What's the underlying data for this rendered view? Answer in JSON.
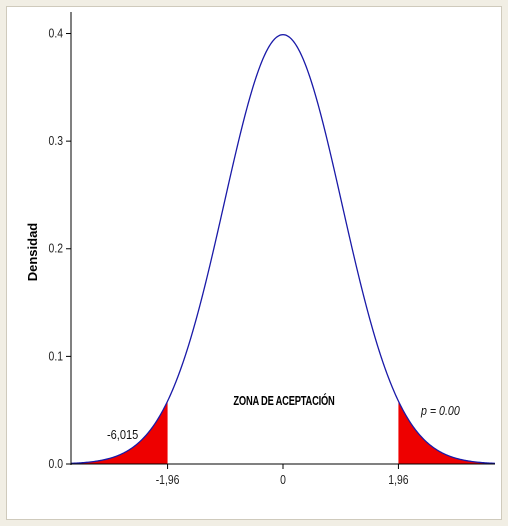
{
  "chart_data": {
    "type": "area",
    "title": "",
    "xlabel": "",
    "ylabel": "Densidad",
    "distribution": "standard normal",
    "xlim": [
      -3.6,
      3.6
    ],
    "ylim": [
      0,
      0.42
    ],
    "x_ticks": [
      {
        "value": -1.96,
        "label": "-1,96"
      },
      {
        "value": 0,
        "label": "0"
      },
      {
        "value": 1.96,
        "label": "1,96"
      }
    ],
    "y_ticks": [
      {
        "value": 0.0,
        "label": "0.0"
      },
      {
        "value": 0.1,
        "label": "0.1"
      },
      {
        "value": 0.2,
        "label": "0.2"
      },
      {
        "value": 0.3,
        "label": "0.3"
      },
      {
        "value": 0.4,
        "label": "0.4"
      }
    ],
    "critical_values": [
      -1.96,
      1.96
    ],
    "curve_color": "#1a1aa8",
    "rejection_fill_color": "#ee0000",
    "annotations": {
      "left": "-6,015",
      "center": "ZONA DE ACEPTACIÓN",
      "right": "p = 0.00"
    },
    "grid": false,
    "legend": "none"
  }
}
